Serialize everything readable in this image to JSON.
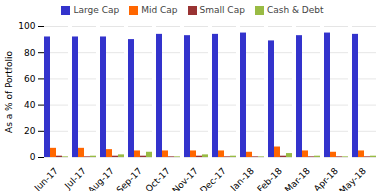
{
  "chart_data": {
    "type": "bar",
    "categories": [
      "Jun-17",
      "Jul-17",
      "Aug-17",
      "Sep-17",
      "Oct-17",
      "Nov-17",
      "Dec-17",
      "Jan-18",
      "Feb-18",
      "Mar-18",
      "Apr-18",
      "May-18"
    ],
    "series": [
      {
        "name": "Large Cap",
        "color": "#3333cc",
        "values": [
          92,
          92,
          92,
          90,
          94,
          93,
          94,
          95,
          89,
          93,
          95,
          94
        ]
      },
      {
        "name": "Mid Cap",
        "color": "#ff6600",
        "values": [
          7,
          7,
          6,
          5,
          5,
          5,
          5,
          4,
          8,
          5,
          4,
          5
        ]
      },
      {
        "name": "Small Cap",
        "color": "#993333",
        "values": [
          1,
          0.5,
          1,
          1,
          0.5,
          1,
          0.5,
          0.5,
          1,
          0.5,
          0.5,
          0.5
        ]
      },
      {
        "name": "Cash & Debt",
        "color": "#99bb44",
        "values": [
          0.5,
          1,
          2,
          4,
          0.5,
          2,
          1,
          0.5,
          3,
          1,
          0.5,
          1
        ]
      }
    ],
    "ylabel": "As a % of Portfolio",
    "ylim": [
      0,
      100
    ],
    "yticks": [
      0,
      20,
      40,
      60,
      80,
      100
    ],
    "grid": true,
    "legend": "top"
  }
}
